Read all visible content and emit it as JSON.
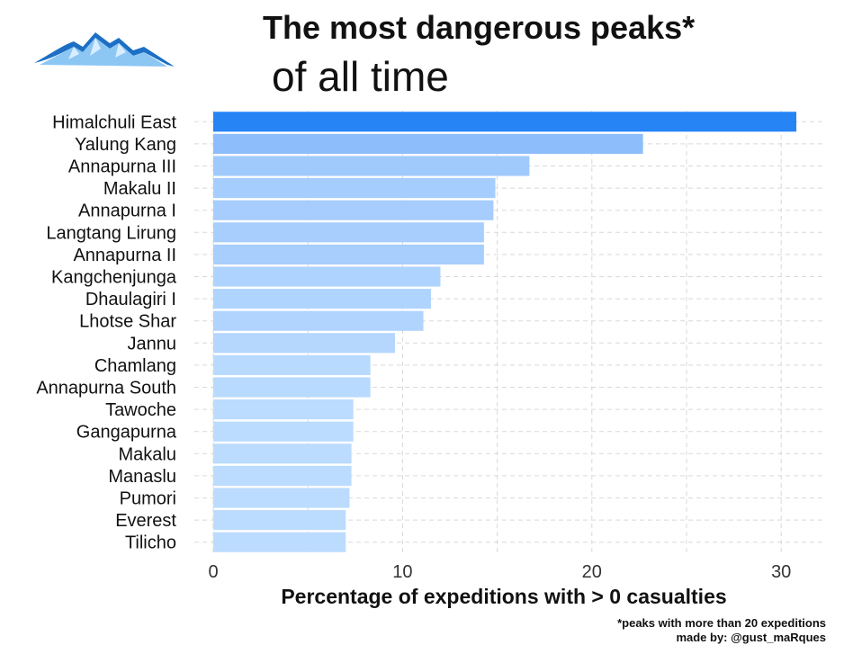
{
  "header": {
    "title": "The most dangerous peaks*",
    "subtitle": "of all time",
    "logo_icon": "mountain-icon"
  },
  "footer": {
    "note": "*peaks with more than 20 expeditions",
    "credit": "made by: @gust_maRques"
  },
  "colors": {
    "bar_top": "#2684f5",
    "bar_light": "#bcdcff",
    "grid": "#d9d9d9"
  },
  "chart_data": {
    "type": "bar",
    "orientation": "horizontal",
    "categories": [
      "Himalchuli East",
      "Yalung Kang",
      "Annapurna III",
      "Makalu II",
      "Annapurna I",
      "Langtang Lirung",
      "Annapurna II",
      "Kangchenjunga",
      "Dhaulagiri I",
      "Lhotse Shar",
      "Jannu",
      "Chamlang",
      "Annapurna South",
      "Tawoche",
      "Gangapurna",
      "Makalu",
      "Manaslu",
      "Pumori",
      "Everest",
      "Tilicho"
    ],
    "values": [
      30.8,
      22.7,
      16.7,
      14.9,
      14.8,
      14.3,
      14.3,
      12.0,
      11.5,
      11.1,
      9.6,
      8.3,
      8.3,
      7.4,
      7.4,
      7.3,
      7.3,
      7.2,
      7.0,
      7.0
    ],
    "xlabel": "Percentage of expeditions with > 0 casualties",
    "ylabel": "",
    "xlim": [
      0,
      32.5
    ],
    "xticks": [
      0,
      10,
      20,
      30
    ],
    "grid": true,
    "legend": "none"
  }
}
